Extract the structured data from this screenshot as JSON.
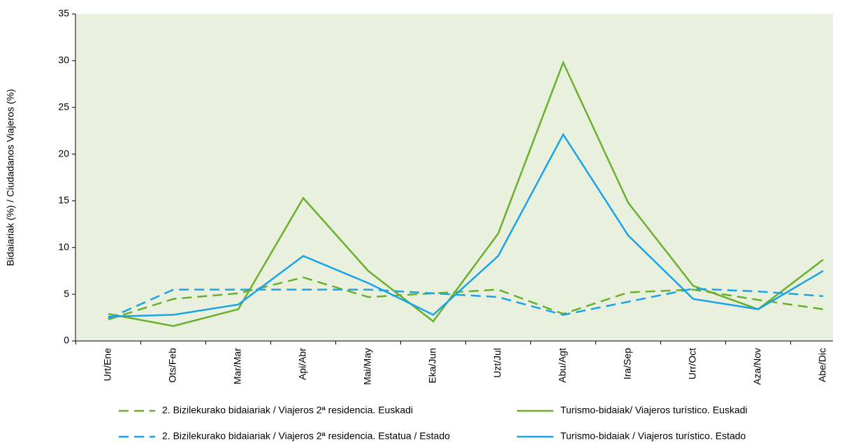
{
  "chart_data": {
    "type": "line",
    "ylabel": "Bidaiariak (%) / Ciudadanos Viajeros (%)",
    "categories": [
      "Urt/Ene",
      "Ots/Feb",
      "Mar/Mar",
      "Api/Abr",
      "Mai/May",
      "Eka/Jun",
      "Uzt/Jul",
      "Abu/Agt",
      "Ira/Sep",
      "Urr/Oct",
      "Aza/Nov",
      "Abe/Dic"
    ],
    "ylim": [
      0,
      35
    ],
    "yticks": [
      0,
      5,
      10,
      15,
      20,
      25,
      30,
      35
    ],
    "series": [
      {
        "name": "2. Bizilekurako bidaiariak / Viajeros 2ª residencia. Euskadi",
        "color": "#6aaf2e",
        "dashed": true,
        "values": [
          2.3,
          4.5,
          5.1,
          6.8,
          4.7,
          5.1,
          5.5,
          2.9,
          5.2,
          5.5,
          4.4,
          3.4
        ]
      },
      {
        "name": "Turismo-bidaiak/ Viajeros turístico. Euskadi",
        "color": "#6aaf2e",
        "dashed": false,
        "values": [
          2.9,
          1.6,
          3.4,
          15.3,
          7.5,
          2.1,
          11.5,
          29.8,
          14.8,
          5.9,
          3.4,
          8.7
        ]
      },
      {
        "name": "2. Bizilekurako bidaiariak / Viajeros 2ª residencia. Estatua / Estado",
        "color": "#1aa3e8",
        "dashed": true,
        "values": [
          2.4,
          5.5,
          5.5,
          5.5,
          5.5,
          5.1,
          4.7,
          2.8,
          4.2,
          5.6,
          5.3,
          4.8
        ]
      },
      {
        "name": "Turismo-bidaiak / Viajeros turístico. Estado",
        "color": "#1aa3e8",
        "dashed": false,
        "values": [
          2.6,
          2.8,
          3.9,
          9.1,
          6.2,
          2.8,
          9.1,
          22.1,
          11.3,
          4.5,
          3.4,
          7.5
        ]
      }
    ],
    "background": "#e9f1de"
  }
}
